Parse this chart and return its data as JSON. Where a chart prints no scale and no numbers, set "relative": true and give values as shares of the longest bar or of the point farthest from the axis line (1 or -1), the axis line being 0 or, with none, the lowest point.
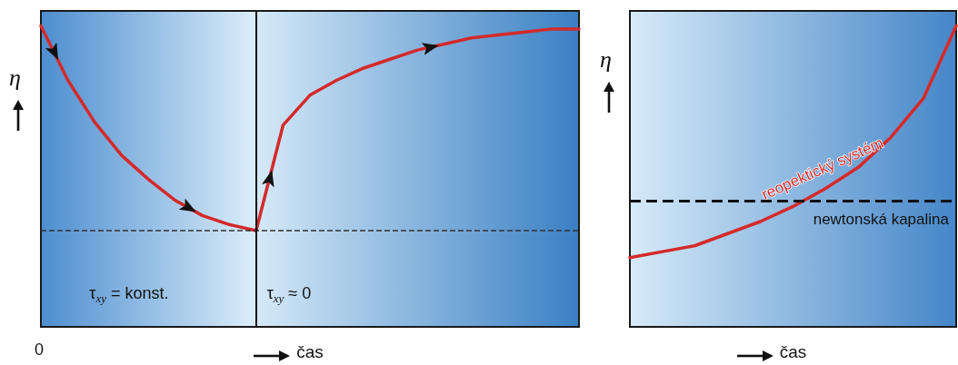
{
  "chart_data": [
    {
      "type": "line",
      "categories": [
        null,
        null,
        null,
        null,
        null,
        null,
        null,
        null,
        null,
        null,
        null,
        null,
        null,
        null,
        null,
        null,
        null,
        null,
        null,
        null,
        null
      ],
      "relative": true,
      "tick_labels": false,
      "ylabel": "η",
      "xlabel": "čas",
      "marker": "none",
      "series": [
        {
          "color": "#d42a2a",
          "values": [
            1.0,
            0.82,
            0.68,
            0.57,
            0.49,
            0.42,
            0.37,
            0.34,
            0.32,
            null,
            null,
            null,
            null,
            null,
            null,
            null,
            null,
            null,
            null,
            null,
            null
          ]
        },
        {
          "color": "#d42a2a",
          "values": [
            null,
            null,
            null,
            null,
            null,
            null,
            null,
            null,
            0.32,
            0.67,
            0.77,
            0.82,
            0.86,
            0.89,
            0.92,
            0.94,
            0.96,
            0.97,
            0.98,
            0.99,
            0.99
          ]
        }
      ],
      "ref_lines": [
        {
          "axis": "y",
          "value": 0.32,
          "color": "#333333",
          "line_style": "dashed"
        }
      ],
      "annotations": [
        "τ$_{xy}$ = konst.",
        "τ$_{xy}$ ≈ 0",
        "0"
      ]
    },
    {
      "type": "line",
      "categories": [
        null,
        null,
        null,
        null,
        null,
        null,
        null,
        null,
        null,
        null,
        null
      ],
      "relative": true,
      "tick_labels": false,
      "ylabel": "η",
      "xlabel": "čas",
      "marker": "none",
      "series": [
        {
          "name": "reopektický systém",
          "color": "#d42a2a",
          "values": [
            0.23,
            0.25,
            0.27,
            0.31,
            0.35,
            0.4,
            0.46,
            0.53,
            0.63,
            0.76,
            1.0
          ]
        }
      ],
      "ref_lines": [
        {
          "axis": "y",
          "value": 0.42,
          "label": "newtonská kapalina",
          "color": "#111111",
          "line_style": "dashed"
        }
      ]
    }
  ]
}
